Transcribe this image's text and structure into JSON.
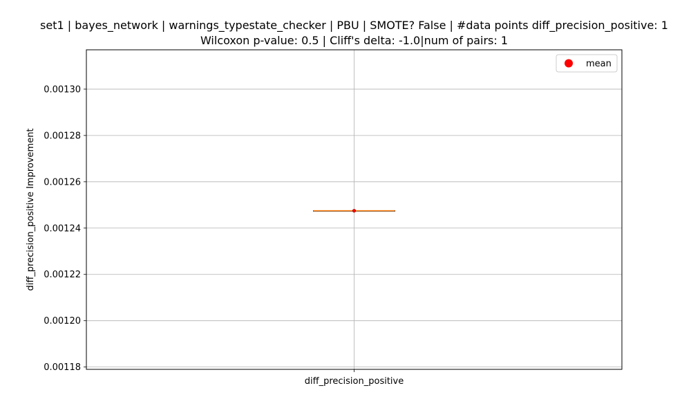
{
  "chart_data": {
    "type": "box",
    "title_line1": "set1 | bayes_network | warnings_typestate_checker | PBU | SMOTE? False | #data points diff_precision_positive: 1",
    "title_line2": "Wilcoxon p-value: 0.5 | Cliff's delta: -1.0|num of pairs: 1",
    "xlabel": "",
    "ylabel": "diff_precision_positive Improvement",
    "categories": [
      "diff_precision_positive"
    ],
    "box": {
      "min": 0.0012475,
      "q1": 0.0012475,
      "median": 0.0012475,
      "q3": 0.0012475,
      "max": 0.0012475,
      "mean": 0.0012475
    },
    "ylim": [
      0.001179,
      0.001317
    ],
    "yticks": [
      0.00118,
      0.0012,
      0.00122,
      0.00124,
      0.00126,
      0.00128,
      0.0013
    ],
    "ytick_labels": [
      "0.00118",
      "0.00120",
      "0.00122",
      "0.00124",
      "0.00126",
      "0.00128",
      "0.00130"
    ],
    "grid": true,
    "legend": {
      "placement": "top-right",
      "entries": [
        {
          "label": "mean",
          "color": "#ff0000",
          "marker": "circle"
        }
      ]
    },
    "colors": {
      "median": "#ff7f0e",
      "box": "#000000",
      "mean": "#ff0000",
      "grid": "#b0b0b0"
    }
  }
}
